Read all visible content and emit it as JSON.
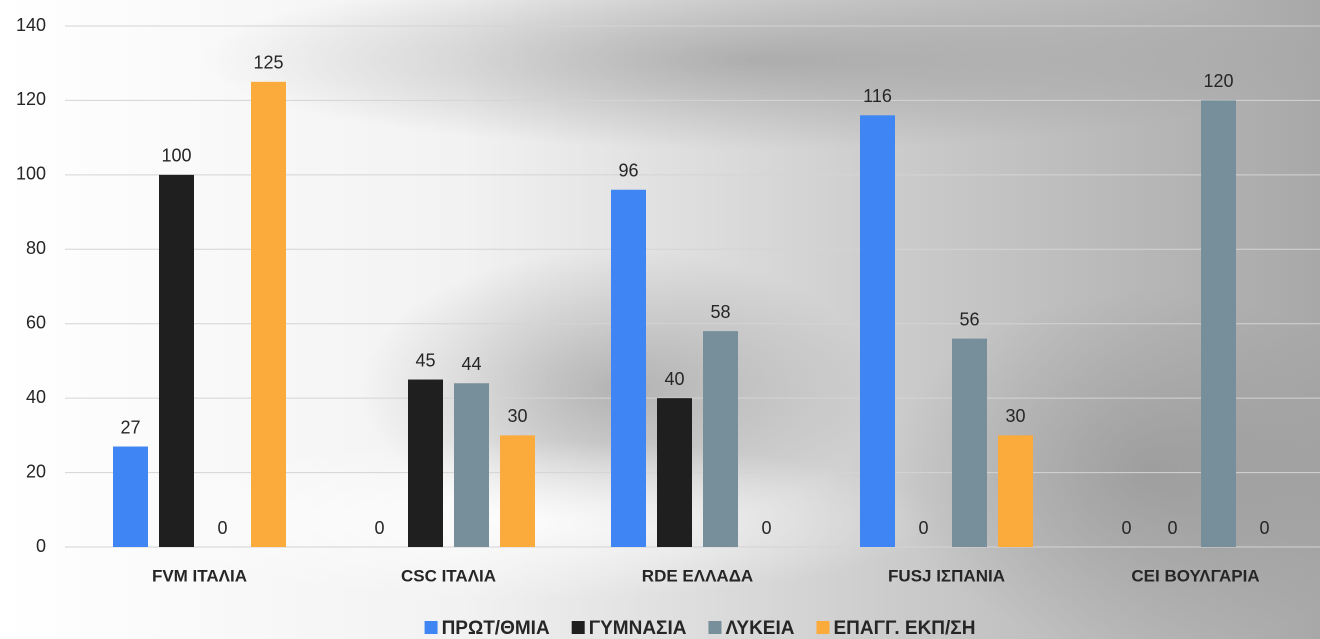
{
  "chart_data": {
    "type": "bar",
    "categories": [
      "FVM ΙΤΑΛΙΑ",
      "CSC ΙΤΑΛΙΑ",
      "RDE ΕΛΛΑΔΑ",
      "FUSJ ΙΣΠΑΝΙΑ",
      "CEI ΒΟΥΛΓΑΡΙΑ"
    ],
    "series": [
      {
        "name": "ΠΡΩΤ/ΘΜΙΑ",
        "color": "#3f86f4",
        "values": [
          27,
          0,
          96,
          116,
          0
        ]
      },
      {
        "name": "ΓΥΜΝΑΣΙΑ",
        "color": "#1f1f1f",
        "values": [
          100,
          45,
          40,
          0,
          0
        ]
      },
      {
        "name": "ΛΥΚΕΙΑ",
        "color": "#768f9b",
        "values": [
          0,
          44,
          58,
          56,
          120
        ]
      },
      {
        "name": "ΕΠΑΓΓ. ΕΚΠ/ΣΗ",
        "color": "#fbab3c",
        "values": [
          125,
          30,
          0,
          30,
          0
        ]
      }
    ],
    "ylim": [
      0,
      140
    ],
    "yticks": [
      0,
      20,
      40,
      60,
      80,
      100,
      120,
      140
    ],
    "grid": true,
    "legend": "bottom"
  }
}
